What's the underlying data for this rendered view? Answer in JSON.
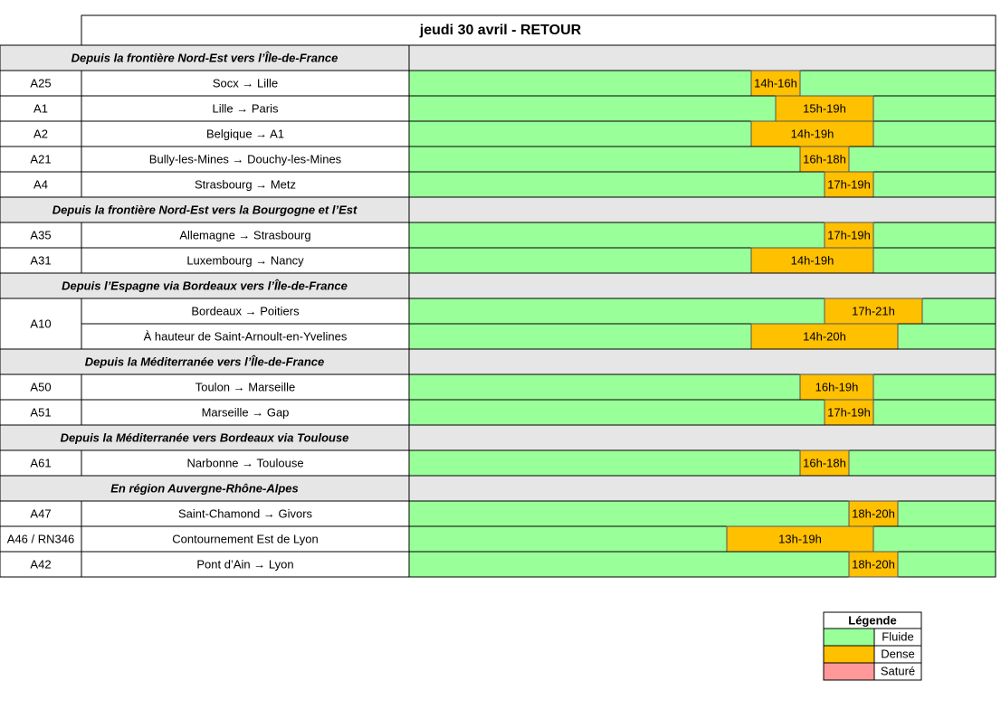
{
  "title": "jeudi 30 avril  - RETOUR",
  "sections": [
    {
      "title": "Depuis la frontière Nord-Est vers l’Île-de-France",
      "rows": [
        {
          "road": "A25",
          "routes": [
            {
              "route": "Socx → Lille",
              "dense": "14h-16h"
            }
          ]
        },
        {
          "road": "A1",
          "routes": [
            {
              "route": "Lille → Paris",
              "dense": "15h-19h"
            }
          ]
        },
        {
          "road": "A2",
          "routes": [
            {
              "route": "Belgique → A1",
              "dense": "14h-19h"
            }
          ]
        },
        {
          "road": "A21",
          "routes": [
            {
              "route": "Bully-les-Mines → Douchy-les-Mines",
              "dense": "16h-18h"
            }
          ]
        },
        {
          "road": "A4",
          "routes": [
            {
              "route": "Strasbourg → Metz",
              "dense": "17h-19h"
            }
          ]
        }
      ]
    },
    {
      "title": "Depuis la frontière Nord-Est vers la Bourgogne et l’Est",
      "rows": [
        {
          "road": "A35",
          "routes": [
            {
              "route": "Allemagne → Strasbourg",
              "dense": "17h-19h"
            }
          ]
        },
        {
          "road": "A31",
          "routes": [
            {
              "route": "Luxembourg → Nancy",
              "dense": "14h-19h"
            }
          ]
        }
      ]
    },
    {
      "title": "Depuis l’Espagne via Bordeaux vers l’Île-de-France",
      "rows": [
        {
          "road": "A10",
          "routes": [
            {
              "route": "Bordeaux → Poitiers",
              "dense": "17h-21h"
            },
            {
              "route": "À hauteur de Saint-Arnoult-en-Yvelines",
              "dense": "14h-20h"
            }
          ]
        }
      ]
    },
    {
      "title": "Depuis la Méditerranée vers l’Île-de-France",
      "rows": [
        {
          "road": "A50",
          "routes": [
            {
              "route": "Toulon → Marseille",
              "dense": "16h-19h"
            }
          ]
        },
        {
          "road": "A51",
          "routes": [
            {
              "route": "Marseille → Gap",
              "dense": "17h-19h"
            }
          ]
        }
      ]
    },
    {
      "title": "Depuis la Méditerranée vers Bordeaux via Toulouse",
      "rows": [
        {
          "road": "A61",
          "routes": [
            {
              "route": "Narbonne → Toulouse",
              "dense": "16h-18h"
            }
          ]
        }
      ]
    },
    {
      "title": "En région Auvergne-Rhône-Alpes",
      "rows": [
        {
          "road": "A47",
          "routes": [
            {
              "route": "Saint-Chamond → Givors",
              "dense": "18h-20h"
            }
          ]
        },
        {
          "road": "A46 / RN346",
          "routes": [
            {
              "route": "Contournement Est de Lyon",
              "dense": "13h-19h"
            }
          ]
        },
        {
          "road": "A42",
          "routes": [
            {
              "route": "Pont d’Ain → Lyon",
              "dense": "18h-20h"
            }
          ]
        }
      ]
    }
  ],
  "legend": {
    "title": "Légende",
    "items": [
      {
        "label": "Fluide",
        "color": "#99ff99"
      },
      {
        "label": "Dense",
        "color": "#ffc000"
      },
      {
        "label": "Saturé",
        "color": "#ff9999"
      }
    ]
  }
}
